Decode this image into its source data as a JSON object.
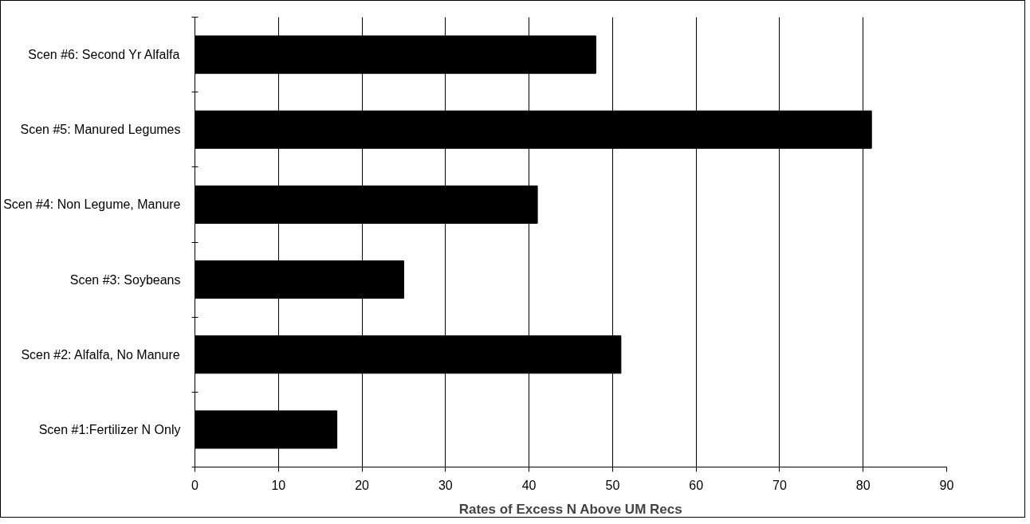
{
  "chart_data": {
    "type": "bar",
    "orientation": "horizontal",
    "categories": [
      "Scen #6: Second Yr Alfalfa",
      "Scen #5: Manured Legumes",
      "Scen #4: Non Legume, Manure",
      "Scen #3: Soybeans",
      "Scen #2: Alfalfa, No Manure",
      "Scen #1:Fertilizer N Only"
    ],
    "values": [
      48,
      81,
      41,
      25,
      51,
      17
    ],
    "color": "#000000",
    "xlabel": "Rates of Excess N Above UM Recs",
    "xlim": [
      0,
      90
    ],
    "xticks": [
      0,
      10,
      20,
      30,
      40,
      50,
      60,
      70,
      80,
      90
    ],
    "grid": "x"
  }
}
